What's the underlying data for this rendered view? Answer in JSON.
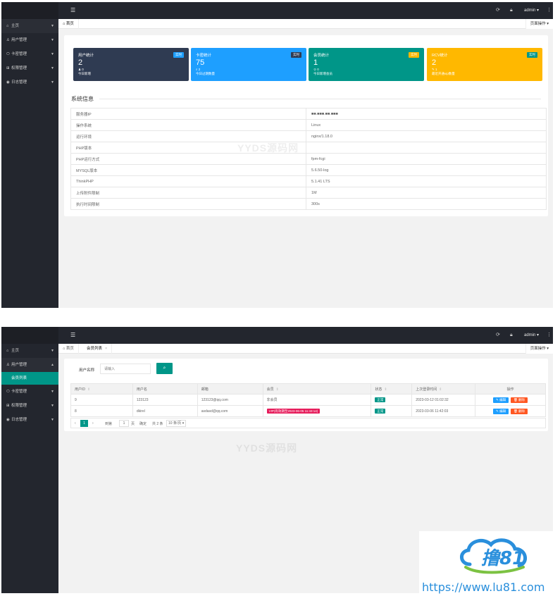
{
  "common": {
    "admin_label": "admin ▾",
    "more_icon": "⋮",
    "page_ops_label": "页面操作 ▾",
    "home_tab": "首页",
    "watermark": "YYDS源码网"
  },
  "shot1": {
    "sidebar": [
      {
        "label": "主页",
        "icon": "home-icon"
      },
      {
        "label": "用户管理",
        "icon": "user-icon"
      },
      {
        "label": "卡密管理",
        "icon": "tag-icon"
      },
      {
        "label": "权限管理",
        "icon": "grid-icon"
      },
      {
        "label": "日志管理",
        "icon": "log-icon"
      }
    ],
    "cards": [
      {
        "title": "用户统计",
        "badge": "实时",
        "value": "2",
        "sub1": "♟ 0",
        "sub2": "今日新增",
        "color": "#2f3b52",
        "badge_color": "#1e9fff"
      },
      {
        "title": "卡密统计",
        "badge": "实时",
        "value": "75",
        "sub1": "⌕ 2",
        "sub2": "今日过期数量",
        "color": "#1e9fff",
        "badge_color": "#2f3b52"
      },
      {
        "title": "会员统计",
        "badge": "实时",
        "value": "1",
        "sub1": "♔ 0",
        "sub2": "今日新增会员",
        "color": "#009688",
        "badge_color": "#ffb800"
      },
      {
        "title": "RCV统计",
        "badge": "实时",
        "value": "2",
        "sub1": "✎ 1",
        "sub2": "最近开通vip数量",
        "color": "#ffb800",
        "badge_color": "#009688"
      }
    ],
    "section_title": "系统信息",
    "info_rows": [
      {
        "key": "服务器IP",
        "value": "■■.■■■.■■.■■■"
      },
      {
        "key": "操作系统",
        "value": "Linux"
      },
      {
        "key": "运行环境",
        "value": "nginx/1.18.0"
      },
      {
        "key": "PHP版本",
        "value": ""
      },
      {
        "key": "PHP运行方式",
        "value": "fpm-fcgi"
      },
      {
        "key": "MYSQL版本",
        "value": "5.6.50-log"
      },
      {
        "key": "ThinkPHP",
        "value": "5.1.41 LTS"
      },
      {
        "key": "上传附件限制",
        "value": "1M"
      },
      {
        "key": "执行时间限制",
        "value": "300s"
      }
    ]
  },
  "shot2": {
    "sidebar_top": [
      {
        "label": "主页",
        "icon": "home-icon"
      },
      {
        "label": "用户管理",
        "icon": "user-icon"
      }
    ],
    "sidebar_sub": "会员列表",
    "sidebar_bottom": [
      {
        "label": "卡密管理",
        "icon": "tag-icon"
      },
      {
        "label": "权限管理",
        "icon": "grid-icon"
      },
      {
        "label": "日志管理",
        "icon": "log-icon"
      }
    ],
    "tab_current": "会员列表",
    "search_label": "用户名称",
    "search_placeholder": "请输入",
    "search_icon": "⌕",
    "columns": [
      "用户ID",
      "用户名",
      "邮箱",
      "会员",
      "状态",
      "上次登录时间",
      "操作"
    ],
    "rows": [
      {
        "id": "9",
        "username": "123123",
        "email": "123123@qq.com",
        "member": "非会员",
        "member_tag": false,
        "status": "正常",
        "last_login": "2023-03-12 01:02:32"
      },
      {
        "id": "8",
        "username": "dkirel",
        "email": "asdasd@qq.com",
        "member": "VIP(有效期至2023-06-05 11:43:14)",
        "member_tag": true,
        "status": "正常",
        "last_login": "2023-03-06 11:42:03"
      }
    ],
    "edit_label": "✎ 编辑",
    "delete_label": "🗑 删除",
    "pager": {
      "prev": "‹",
      "current": "1",
      "next": "›",
      "goto_label": "到第",
      "goto_value": "1",
      "page_unit": "页",
      "confirm": "确定",
      "total": "共 2 条",
      "page_size": "10 条/页 ▾"
    }
  },
  "logo": {
    "brand": "撸81",
    "url": "https://www.lu81.com"
  }
}
